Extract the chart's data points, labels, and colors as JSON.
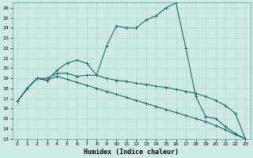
{
  "xlabel": "Humidex (Indice chaleur)",
  "bg_color": "#cdeae7",
  "grid_color": "#b8d8d5",
  "line_color": "#1e6b65",
  "xlim": [
    -0.5,
    23.5
  ],
  "ylim": [
    13,
    26.5
  ],
  "xticks": [
    0,
    1,
    2,
    3,
    4,
    5,
    6,
    7,
    8,
    9,
    10,
    11,
    12,
    13,
    14,
    15,
    16,
    17,
    18,
    19,
    20,
    21,
    22,
    23
  ],
  "yticks": [
    13,
    14,
    15,
    16,
    17,
    18,
    19,
    20,
    21,
    22,
    23,
    24,
    25,
    26
  ],
  "curve1_x": [
    0,
    1,
    2,
    3,
    4,
    5,
    6,
    7,
    8,
    9,
    10,
    11,
    12,
    13,
    14,
    15,
    16,
    17,
    18,
    19,
    20,
    21,
    22,
    23
  ],
  "curve1_y": [
    16.7,
    18.0,
    19.0,
    19.0,
    19.5,
    19.5,
    19.2,
    19.3,
    19.3,
    22.2,
    24.2,
    24.0,
    24.0,
    24.8,
    25.2,
    26.0,
    26.5,
    22.0,
    17.2,
    15.2,
    15.0,
    14.2,
    13.5,
    13.0
  ],
  "curve2_x": [
    0,
    1,
    2,
    3,
    4,
    5,
    6,
    7,
    8,
    9,
    10,
    11,
    12,
    13,
    14,
    15,
    16,
    17,
    18,
    19,
    20,
    21,
    22,
    23
  ],
  "curve2_y": [
    16.7,
    18.0,
    19.0,
    18.8,
    19.8,
    20.5,
    20.8,
    20.5,
    19.3,
    19.0,
    18.8,
    18.7,
    18.5,
    18.4,
    18.2,
    18.1,
    17.9,
    17.7,
    17.5,
    17.2,
    16.8,
    16.3,
    15.5,
    13.0
  ],
  "curve3_x": [
    0,
    1,
    2,
    3,
    4,
    5,
    6,
    7,
    8,
    9,
    10,
    11,
    12,
    13,
    14,
    15,
    16,
    17,
    18,
    19,
    20,
    21,
    22,
    23
  ],
  "curve3_y": [
    16.7,
    18.0,
    19.0,
    18.8,
    19.2,
    18.9,
    18.6,
    18.3,
    18.0,
    17.7,
    17.4,
    17.1,
    16.8,
    16.5,
    16.2,
    15.9,
    15.6,
    15.3,
    15.0,
    14.7,
    14.3,
    13.9,
    13.4,
    13.0
  ]
}
